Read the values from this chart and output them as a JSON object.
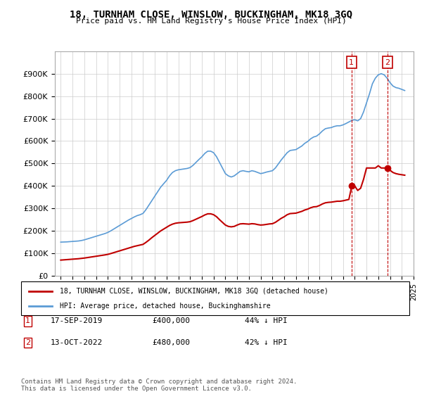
{
  "title": "18, TURNHAM CLOSE, WINSLOW, BUCKINGHAM, MK18 3GQ",
  "subtitle": "Price paid vs. HM Land Registry's House Price Index (HPI)",
  "xlabel": "",
  "ylabel": "",
  "ylim": [
    0,
    1000000
  ],
  "yticks": [
    0,
    100000,
    200000,
    300000,
    400000,
    500000,
    600000,
    700000,
    800000,
    900000
  ],
  "ytick_labels": [
    "£0",
    "£100K",
    "£200K",
    "£300K",
    "£400K",
    "£500K",
    "£600K",
    "£700K",
    "£800K",
    "£900K"
  ],
  "hpi_color": "#5b9bd5",
  "price_color": "#c00000",
  "vline_color": "#c00000",
  "annotation_box_color": "#c00000",
  "background_color": "#ffffff",
  "grid_color": "#cccccc",
  "legend_label_price": "18, TURNHAM CLOSE, WINSLOW, BUCKINGHAM, MK18 3GQ (detached house)",
  "legend_label_hpi": "HPI: Average price, detached house, Buckinghamshire",
  "transaction1_date": "17-SEP-2019",
  "transaction1_price": "£400,000",
  "transaction1_hpi": "44% ↓ HPI",
  "transaction1_year": 2019.72,
  "transaction1_value": 400000,
  "transaction2_date": "13-OCT-2022",
  "transaction2_price": "£480,000",
  "transaction2_hpi": "42% ↓ HPI",
  "transaction2_year": 2022.79,
  "transaction2_value": 480000,
  "footer": "Contains HM Land Registry data © Crown copyright and database right 2024.\nThis data is licensed under the Open Government Licence v3.0.",
  "hpi_data_x": [
    1995.0,
    1995.25,
    1995.5,
    1995.75,
    1996.0,
    1996.25,
    1996.5,
    1996.75,
    1997.0,
    1997.25,
    1997.5,
    1997.75,
    1998.0,
    1998.25,
    1998.5,
    1998.75,
    1999.0,
    1999.25,
    1999.5,
    1999.75,
    2000.0,
    2000.25,
    2000.5,
    2000.75,
    2001.0,
    2001.25,
    2001.5,
    2001.75,
    2002.0,
    2002.25,
    2002.5,
    2002.75,
    2003.0,
    2003.25,
    2003.5,
    2003.75,
    2004.0,
    2004.25,
    2004.5,
    2004.75,
    2005.0,
    2005.25,
    2005.5,
    2005.75,
    2006.0,
    2006.25,
    2006.5,
    2006.75,
    2007.0,
    2007.25,
    2007.5,
    2007.75,
    2008.0,
    2008.25,
    2008.5,
    2008.75,
    2009.0,
    2009.25,
    2009.5,
    2009.75,
    2010.0,
    2010.25,
    2010.5,
    2010.75,
    2011.0,
    2011.25,
    2011.5,
    2011.75,
    2012.0,
    2012.25,
    2012.5,
    2012.75,
    2013.0,
    2013.25,
    2013.5,
    2013.75,
    2014.0,
    2014.25,
    2014.5,
    2014.75,
    2015.0,
    2015.25,
    2015.5,
    2015.75,
    2016.0,
    2016.25,
    2016.5,
    2016.75,
    2017.0,
    2017.25,
    2017.5,
    2017.75,
    2018.0,
    2018.25,
    2018.5,
    2018.75,
    2019.0,
    2019.25,
    2019.5,
    2019.75,
    2020.0,
    2020.25,
    2020.5,
    2020.75,
    2021.0,
    2021.25,
    2021.5,
    2021.75,
    2022.0,
    2022.25,
    2022.5,
    2022.75,
    2023.0,
    2023.25,
    2023.5,
    2023.75,
    2024.0,
    2024.25
  ],
  "hpi_data_y": [
    150000,
    150500,
    151000,
    152000,
    153000,
    154000,
    155000,
    157000,
    160000,
    164000,
    168000,
    172000,
    176000,
    180000,
    184000,
    188000,
    193000,
    200000,
    208000,
    216000,
    224000,
    232000,
    240000,
    248000,
    255000,
    262000,
    268000,
    272000,
    278000,
    295000,
    315000,
    335000,
    355000,
    375000,
    395000,
    410000,
    425000,
    445000,
    460000,
    468000,
    472000,
    474000,
    476000,
    478000,
    482000,
    492000,
    505000,
    518000,
    530000,
    545000,
    555000,
    555000,
    548000,
    530000,
    505000,
    480000,
    455000,
    445000,
    440000,
    445000,
    455000,
    465000,
    468000,
    465000,
    463000,
    468000,
    465000,
    460000,
    455000,
    458000,
    462000,
    465000,
    468000,
    480000,
    498000,
    516000,
    532000,
    548000,
    558000,
    560000,
    562000,
    570000,
    578000,
    590000,
    598000,
    610000,
    618000,
    622000,
    632000,
    645000,
    655000,
    658000,
    660000,
    665000,
    668000,
    668000,
    672000,
    678000,
    685000,
    692000,
    695000,
    690000,
    700000,
    730000,
    770000,
    810000,
    855000,
    880000,
    895000,
    900000,
    895000,
    880000,
    860000,
    845000,
    838000,
    835000,
    830000,
    825000
  ],
  "price_data_x": [
    1995.0,
    1995.25,
    1995.5,
    1995.75,
    1996.0,
    1996.25,
    1996.5,
    1996.75,
    1997.0,
    1997.25,
    1997.5,
    1997.75,
    1998.0,
    1998.25,
    1998.5,
    1998.75,
    1999.0,
    1999.25,
    1999.5,
    1999.75,
    2000.0,
    2000.25,
    2000.5,
    2000.75,
    2001.0,
    2001.25,
    2001.5,
    2001.75,
    2002.0,
    2002.25,
    2002.5,
    2002.75,
    2003.0,
    2003.25,
    2003.5,
    2003.75,
    2004.0,
    2004.25,
    2004.5,
    2004.75,
    2005.0,
    2005.25,
    2005.5,
    2005.75,
    2006.0,
    2006.25,
    2006.5,
    2006.75,
    2007.0,
    2007.25,
    2007.5,
    2007.75,
    2008.0,
    2008.25,
    2008.5,
    2008.75,
    2009.0,
    2009.25,
    2009.5,
    2009.75,
    2010.0,
    2010.25,
    2010.5,
    2010.75,
    2011.0,
    2011.25,
    2011.5,
    2011.75,
    2012.0,
    2012.25,
    2012.5,
    2012.75,
    2013.0,
    2013.25,
    2013.5,
    2013.75,
    2014.0,
    2014.25,
    2014.5,
    2014.75,
    2015.0,
    2015.25,
    2015.5,
    2015.75,
    2016.0,
    2016.25,
    2016.5,
    2016.75,
    2017.0,
    2017.25,
    2017.5,
    2017.75,
    2018.0,
    2018.25,
    2018.5,
    2018.75,
    2019.0,
    2019.25,
    2019.5,
    2019.75,
    2020.0,
    2020.25,
    2020.5,
    2020.75,
    2021.0,
    2021.25,
    2021.5,
    2021.75,
    2022.0,
    2022.25,
    2022.5,
    2022.75,
    2023.0,
    2023.25,
    2023.5,
    2023.75,
    2024.0,
    2024.25
  ],
  "price_data_y": [
    70000,
    71000,
    72000,
    73000,
    74000,
    75000,
    76000,
    77500,
    79000,
    81000,
    83000,
    85000,
    87000,
    89000,
    91000,
    93000,
    95500,
    99000,
    103000,
    107000,
    111000,
    115000,
    119000,
    123000,
    127000,
    131000,
    134000,
    137000,
    140000,
    149000,
    159000,
    170000,
    180000,
    190000,
    200000,
    208000,
    216000,
    224000,
    230000,
    234000,
    236000,
    237000,
    238000,
    239000,
    241000,
    246000,
    252000,
    258000,
    264000,
    271000,
    276000,
    276000,
    272000,
    263000,
    250000,
    238000,
    226000,
    220000,
    218000,
    220000,
    226000,
    231000,
    232000,
    231000,
    230000,
    232000,
    231000,
    228000,
    226000,
    227000,
    229000,
    231000,
    232000,
    238000,
    247000,
    256000,
    263000,
    272000,
    277000,
    278000,
    279000,
    283000,
    287000,
    293000,
    297000,
    303000,
    307000,
    308000,
    313000,
    320000,
    325000,
    327000,
    328000,
    330000,
    332000,
    332000,
    334000,
    337000,
    340000,
    400000,
    400000,
    380000,
    390000,
    430000,
    480000,
    480000,
    480000,
    480000,
    490000,
    480000,
    480000,
    480000,
    470000,
    460000,
    455000,
    452000,
    450000,
    448000
  ]
}
